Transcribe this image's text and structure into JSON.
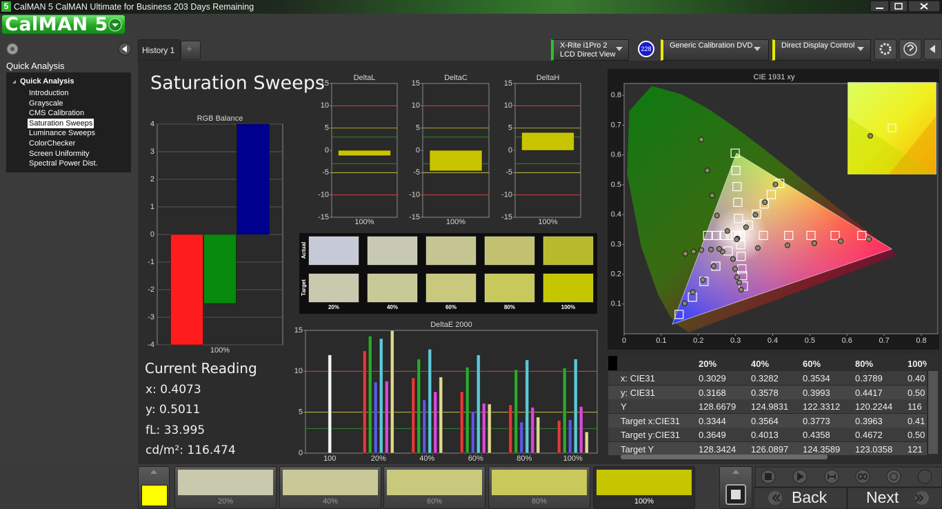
{
  "window": {
    "icon": "5",
    "title": "CalMAN 5 CalMAN Ultimate for Business 203 Days Remaining"
  },
  "logo": "CalMAN 5",
  "sidebar": {
    "header": "Quick Analysis",
    "tree_root": "Quick Analysis",
    "items": [
      "Introduction",
      "Grayscale",
      "CMS Calibration",
      "Saturation Sweeps",
      "Luminance Sweeps",
      "ColorChecker",
      "Screen Uniformity",
      "Spectral Power Dist."
    ],
    "selected": 3
  },
  "tabs": [
    "History 1",
    "+"
  ],
  "devices": {
    "meter": [
      "X-Rite i1Pro 2",
      "LCD Direct View"
    ],
    "meter_badge": "228",
    "source": "Generic Calibration DVD",
    "display": "Direct Display Control"
  },
  "page_title": "Saturation Sweeps",
  "current_reading": {
    "title": "Current Reading",
    "lines": [
      "x: 0.4073",
      "y: 0.5011",
      "fL: 33.995",
      "cd/m²: 116.474"
    ]
  },
  "swatch_panel": {
    "row_labels": [
      "Actual",
      "Target"
    ],
    "columns": [
      "20%",
      "40%",
      "60%",
      "80%",
      "100%"
    ],
    "actual_colors": [
      "#c6c9d6",
      "#c8c9b2",
      "#c4c590",
      "#c1c170",
      "#b9b92c"
    ],
    "target_colors": [
      "#c9c9ad",
      "#c9c997",
      "#c9c97d",
      "#c8c85b",
      "#c5c500"
    ]
  },
  "table": {
    "header": [
      "20%",
      "40%",
      "60%",
      "80%",
      "100%"
    ],
    "rows": [
      [
        "x: CIE31",
        "0.3029",
        "0.3282",
        "0.3534",
        "0.3789",
        "0.40"
      ],
      [
        "y: CIE31",
        "0.3168",
        "0.3578",
        "0.3993",
        "0.4417",
        "0.50"
      ],
      [
        "Y",
        "128.6679",
        "124.9831",
        "122.3312",
        "120.2244",
        "116"
      ],
      [
        "Target x:CIE31",
        "0.3344",
        "0.3564",
        "0.3773",
        "0.3963",
        "0.41"
      ],
      [
        "Target y:CIE31",
        "0.3649",
        "0.4013",
        "0.4358",
        "0.4672",
        "0.50"
      ],
      [
        "Target Y",
        "128.3424",
        "126.0897",
        "124.3589",
        "123.0358",
        "121"
      ]
    ]
  },
  "bottom_strip": {
    "labels": [
      "20%",
      "40%",
      "60%",
      "80%",
      "100%"
    ],
    "colors": [
      "#c9c9ad",
      "#c9c997",
      "#c9c97d",
      "#c8c85b",
      "#c5c500"
    ],
    "selected": 4,
    "current_color": "#ffff00"
  },
  "nav": {
    "back": "Back",
    "next": "Next"
  },
  "chart_data": [
    {
      "type": "bar",
      "title": "RGB Balance",
      "categories": [
        "100%"
      ],
      "series": [
        {
          "color": "#ff1c1c",
          "values": [
            -4
          ]
        },
        {
          "color": "#088a0c",
          "values": [
            -2.5
          ]
        },
        {
          "color": "#00008e",
          "values": [
            4
          ]
        }
      ],
      "ylim": [
        -4,
        4
      ],
      "yticks": [
        -4,
        -3,
        -2,
        -1,
        0,
        1,
        2,
        3,
        4
      ],
      "grid": true
    },
    {
      "type": "bar",
      "title": "DeltaL",
      "categories": [
        "100%"
      ],
      "values": [
        -1.2
      ],
      "color": "#c9c400",
      "ylim": [
        -15,
        15
      ],
      "yticks": [
        -15,
        -10,
        -5,
        0,
        5,
        10,
        15
      ],
      "grid": false,
      "hlines": [
        {
          "value": 10,
          "color": "#e04040"
        },
        {
          "value": -10,
          "color": "#e04040"
        },
        {
          "value": 5,
          "color": "#a8a838"
        },
        {
          "value": -5,
          "color": "#c8c840"
        },
        {
          "value": 3,
          "color": "#2e8a2e"
        },
        {
          "value": -3,
          "color": "#2e8a2e"
        }
      ]
    },
    {
      "type": "bar",
      "title": "DeltaC",
      "categories": [
        "100%"
      ],
      "values": [
        -4.6
      ],
      "color": "#c9c400",
      "ylim": [
        -15,
        15
      ],
      "yticks": [
        -15,
        -10,
        -5,
        0,
        5,
        10,
        15
      ],
      "grid": false,
      "hlines": [
        {
          "value": 10,
          "color": "#e04040"
        },
        {
          "value": -10,
          "color": "#e04040"
        },
        {
          "value": 5,
          "color": "#a8a838"
        },
        {
          "value": -5,
          "color": "#c8c840"
        },
        {
          "value": 3,
          "color": "#2e8a2e"
        },
        {
          "value": -3,
          "color": "#2e8a2e"
        }
      ]
    },
    {
      "type": "bar",
      "title": "DeltaH",
      "categories": [
        "100%"
      ],
      "values": [
        4
      ],
      "color": "#c9c400",
      "ylim": [
        -15,
        15
      ],
      "yticks": [
        -15,
        -10,
        -5,
        0,
        5,
        10,
        15
      ],
      "grid": false,
      "hlines": [
        {
          "value": 10,
          "color": "#e04040"
        },
        {
          "value": -10,
          "color": "#e04040"
        },
        {
          "value": 5,
          "color": "#a8a838"
        },
        {
          "value": -5,
          "color": "#c8c840"
        },
        {
          "value": 3,
          "color": "#2e8a2e"
        },
        {
          "value": -3,
          "color": "#2e8a2e"
        }
      ]
    },
    {
      "type": "bar",
      "title": "DeltaE 2000",
      "categories": [
        "100",
        "20%",
        "40%",
        "60%",
        "80%",
        "100%"
      ],
      "series": [
        {
          "color": "#f4f4f4",
          "values": [
            12,
            null,
            null,
            null,
            null,
            null
          ]
        },
        {
          "color": "#e03a3a",
          "values": [
            null,
            12.5,
            9.2,
            7.5,
            5.9,
            4
          ]
        },
        {
          "color": "#2ea82e",
          "values": [
            null,
            14.3,
            11.5,
            10.5,
            10.2,
            10.4
          ]
        },
        {
          "color": "#5a5ae0",
          "values": [
            null,
            8.7,
            6.5,
            5.1,
            3.8,
            4.1
          ]
        },
        {
          "color": "#5ec8d8",
          "values": [
            null,
            14,
            12.7,
            12,
            11.4,
            11.5
          ]
        },
        {
          "color": "#d84ad8",
          "values": [
            null,
            8.8,
            7.5,
            6.1,
            5.6,
            5.7
          ]
        },
        {
          "color": "#e0d890",
          "values": [
            null,
            15,
            9.3,
            6,
            4.4,
            2.6
          ]
        }
      ],
      "ylim": [
        0,
        15
      ],
      "yticks": [
        0,
        5,
        10,
        15
      ],
      "grid": false,
      "hlines": [
        {
          "value": 10,
          "color": "#e04040"
        },
        {
          "value": 5,
          "color": "#c8c840"
        },
        {
          "value": 3,
          "color": "#2e8a2e"
        }
      ]
    },
    {
      "type": "scatter",
      "title": "CIE 1931 xy",
      "series": [
        {
          "marker": "square",
          "color": "#ffffff",
          "x": [
            0.3127,
            0.375,
            0.443,
            0.503,
            0.568,
            0.64,
            0.308,
            0.306,
            0.304,
            0.301,
            0.299,
            0.28,
            0.247,
            0.215,
            0.184,
            0.148,
            0.3,
            0.287,
            0.269,
            0.249,
            0.225,
            0.314,
            0.315,
            0.317,
            0.319,
            0.321,
            0.3344,
            0.3564,
            0.3773,
            0.3963,
            0.419
          ],
          "y": [
            0.329,
            0.33,
            0.33,
            0.33,
            0.33,
            0.33,
            0.387,
            0.441,
            0.494,
            0.548,
            0.606,
            0.278,
            0.227,
            0.176,
            0.123,
            0.065,
            0.33,
            0.33,
            0.33,
            0.33,
            0.33,
            0.299,
            0.26,
            0.218,
            0.195,
            0.16,
            0.3649,
            0.4013,
            0.4358,
            0.4672,
            0.505
          ]
        },
        {
          "marker": "circle",
          "color": "#8a8a6a",
          "x": [
            0.305,
            0.36,
            0.44,
            0.512,
            0.583,
            0.659,
            0.278,
            0.25,
            0.237,
            0.224,
            0.208,
            0.265,
            0.241,
            0.212,
            0.185,
            0.163,
            0.256,
            0.234,
            0.208,
            0.187,
            0.165,
            0.293,
            0.299,
            0.304,
            0.31,
            0.315,
            0.3029,
            0.3282,
            0.3534,
            0.3789,
            0.4073
          ],
          "y": [
            0.32,
            0.288,
            0.297,
            0.304,
            0.311,
            0.318,
            0.345,
            0.397,
            0.464,
            0.548,
            0.652,
            0.276,
            0.227,
            0.181,
            0.14,
            0.102,
            0.285,
            0.283,
            0.281,
            0.276,
            0.269,
            0.251,
            0.218,
            0.19,
            0.172,
            0.148,
            0.3168,
            0.3578,
            0.3993,
            0.4417,
            0.5011
          ]
        }
      ],
      "xlim": [
        0,
        0.8
      ],
      "ylim": [
        0,
        0.84
      ],
      "xticks": [
        0,
        0.1,
        0.2,
        0.3,
        0.4,
        0.5,
        0.6,
        0.7,
        0.8
      ],
      "yticks": [
        0.1,
        0.2,
        0.3,
        0.4,
        0.5,
        0.6,
        0.7,
        0.8
      ]
    }
  ]
}
